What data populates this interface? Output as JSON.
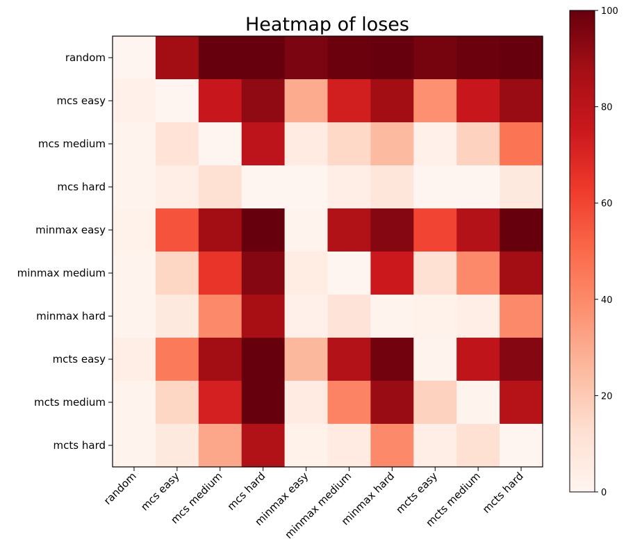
{
  "chart_data": {
    "type": "heatmap",
    "title": "Heatmap of loses",
    "xlabel": "",
    "ylabel": "",
    "rows": [
      "random",
      "mcs easy",
      "mcs medium",
      "mcs hard",
      "minmax easy",
      "minmax medium",
      "minmax hard",
      "mcts easy",
      "mcts medium",
      "mcts hard"
    ],
    "columns": [
      "random",
      "mcs easy",
      "mcs medium",
      "mcs hard",
      "minmax easy",
      "minmax medium",
      "minmax hard",
      "mcts easy",
      "mcts medium",
      "mcts hard"
    ],
    "values": [
      [
        0,
        88,
        100,
        100,
        96,
        99,
        100,
        97,
        99,
        100
      ],
      [
        3,
        0,
        76,
        92,
        30,
        73,
        88,
        38,
        76,
        90
      ],
      [
        1,
        11,
        0,
        80,
        6,
        15,
        25,
        3,
        17,
        47
      ],
      [
        1,
        4,
        12,
        0,
        0,
        4,
        9,
        0,
        0,
        7
      ],
      [
        2,
        56,
        88,
        100,
        1,
        84,
        94,
        60,
        83,
        100
      ],
      [
        1,
        16,
        65,
        94,
        5,
        0,
        75,
        12,
        40,
        88
      ],
      [
        1,
        7,
        40,
        87,
        3,
        10,
        1,
        2,
        4,
        40
      ],
      [
        4,
        45,
        88,
        100,
        26,
        83,
        98,
        1,
        79,
        94
      ],
      [
        1,
        16,
        72,
        100,
        6,
        42,
        90,
        17,
        1,
        82
      ],
      [
        1,
        7,
        31,
        84,
        2,
        6,
        40,
        4,
        12,
        0
      ]
    ],
    "colorbar": {
      "min": 0,
      "max": 100,
      "ticks": [
        "0",
        "20",
        "40",
        "60",
        "80",
        "100"
      ],
      "colormap": [
        "#fff5f0",
        "#fee0d2",
        "#fcbba1",
        "#fc9272",
        "#fb6a4a",
        "#ef3b2c",
        "#cb181d",
        "#a50f15",
        "#67000d"
      ]
    }
  }
}
